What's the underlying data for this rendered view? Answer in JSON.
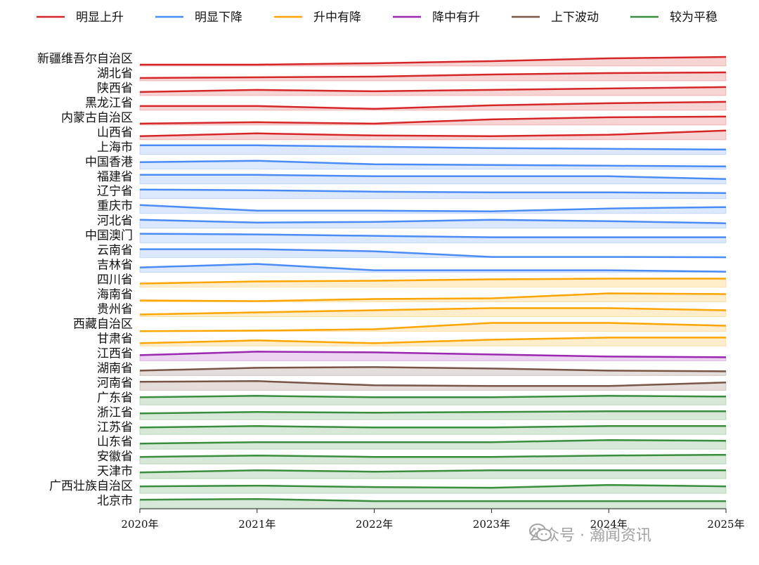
{
  "chart_data": {
    "type": "area",
    "title": "",
    "xlabel": "",
    "ylabel": "",
    "x": [
      "2020年",
      "2021年",
      "2022年",
      "2023年",
      "2024年",
      "2025年"
    ],
    "legend": {
      "placement": "top",
      "entries": [
        {
          "name": "明显上升",
          "color": "#d62728"
        },
        {
          "name": "明显下降",
          "color": "#4a8cf7"
        },
        {
          "name": "升中有降",
          "color": "#ffa500"
        },
        {
          "name": "降中有升",
          "color": "#9c27b0"
        },
        {
          "name": "上下波动",
          "color": "#795548"
        },
        {
          "name": "较为平稳",
          "color": "#388e3c"
        }
      ]
    },
    "grid": false,
    "series": [
      {
        "name": "新疆维吾尔自治区",
        "group": 0,
        "values": [
          2,
          2,
          4,
          7,
          11,
          13
        ]
      },
      {
        "name": "湖北省",
        "group": 0,
        "values": [
          4,
          5,
          6,
          9,
          11,
          12
        ]
      },
      {
        "name": "陕西省",
        "group": 0,
        "values": [
          5,
          8,
          6,
          8,
          10,
          12
        ]
      },
      {
        "name": "黑龙江省",
        "group": 0,
        "values": [
          6,
          6,
          2,
          7,
          10,
          12
        ]
      },
      {
        "name": "内蒙古自治区",
        "group": 0,
        "values": [
          2,
          4,
          2,
          8,
          11,
          12
        ]
      },
      {
        "name": "山西省",
        "group": 0,
        "values": [
          5,
          9,
          6,
          5,
          7,
          13
        ]
      },
      {
        "name": "上海市",
        "group": 1,
        "values": [
          13,
          13,
          11,
          9,
          8,
          7
        ]
      },
      {
        "name": "中国香港",
        "group": 1,
        "values": [
          10,
          12,
          7,
          6,
          5,
          4
        ]
      },
      {
        "name": "福建省",
        "group": 1,
        "values": [
          13,
          13,
          11,
          11,
          11,
          7
        ]
      },
      {
        "name": "辽宁省",
        "group": 1,
        "values": [
          13,
          12,
          10,
          9,
          9,
          8
        ]
      },
      {
        "name": "重庆市",
        "group": 1,
        "values": [
          12,
          4,
          4,
          3,
          7,
          9
        ]
      },
      {
        "name": "河北省",
        "group": 1,
        "values": [
          12,
          8,
          9,
          12,
          10,
          7
        ]
      },
      {
        "name": "中国澳门",
        "group": 1,
        "values": [
          13,
          12,
          10,
          8,
          8,
          8
        ]
      },
      {
        "name": "云南省",
        "group": 1,
        "values": [
          12,
          12,
          9,
          1,
          1,
          0.5
        ]
      },
      {
        "name": "吉林省",
        "group": 1,
        "values": [
          7,
          12,
          3,
          3,
          3,
          1
        ]
      },
      {
        "name": "四川省",
        "group": 2,
        "values": [
          5,
          8,
          9,
          11,
          12,
          12
        ]
      },
      {
        "name": "海南省",
        "group": 2,
        "values": [
          2,
          1,
          4,
          5,
          12,
          11
        ]
      },
      {
        "name": "贵州省",
        "group": 2,
        "values": [
          3,
          6,
          9,
          12,
          12,
          9
        ]
      },
      {
        "name": "西藏自治区",
        "group": 2,
        "values": [
          0.3,
          1,
          3,
          12,
          12,
          8
        ]
      },
      {
        "name": "甘肃省",
        "group": 2,
        "values": [
          4,
          8,
          4,
          9,
          12,
          12
        ]
      },
      {
        "name": "江西省",
        "group": 3,
        "values": [
          8,
          13,
          12,
          9,
          6,
          5
        ]
      },
      {
        "name": "湖南省",
        "group": 4,
        "values": [
          7,
          11,
          12,
          10,
          7,
          6
        ]
      },
      {
        "name": "河南省",
        "group": 4,
        "values": [
          12,
          13,
          7,
          6,
          6,
          11
        ]
      },
      {
        "name": "广东省",
        "group": 5,
        "values": [
          11,
          13,
          11,
          11,
          13,
          12
        ]
      },
      {
        "name": "浙江省",
        "group": 5,
        "values": [
          9,
          11,
          10,
          11,
          12,
          12
        ]
      },
      {
        "name": "江苏省",
        "group": 5,
        "values": [
          10,
          12,
          10,
          10,
          12,
          12
        ]
      },
      {
        "name": "山东省",
        "group": 5,
        "values": [
          8,
          10,
          10,
          10,
          13,
          12
        ]
      },
      {
        "name": "安徽省",
        "group": 5,
        "values": [
          10,
          12,
          10,
          10,
          12,
          13
        ]
      },
      {
        "name": "天津市",
        "group": 5,
        "values": [
          9,
          12,
          10,
          12,
          12,
          12
        ]
      },
      {
        "name": "广西壮族自治区",
        "group": 5,
        "values": [
          10,
          11,
          9,
          8,
          12,
          10
        ]
      },
      {
        "name": "北京市",
        "group": 5,
        "values": [
          12,
          13,
          10,
          10,
          10,
          10
        ]
      }
    ]
  },
  "watermark": {
    "text": "公众号 · 瀚闻资讯",
    "icon": "wechat-icon"
  }
}
